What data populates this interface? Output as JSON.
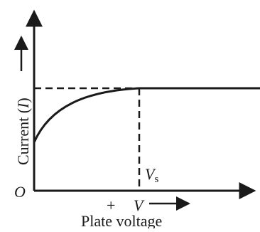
{
  "diagram": {
    "origin_label": "O",
    "y_axis_label_prefix": "Current (",
    "y_axis_label_var": "I",
    "y_axis_label_suffix": ")",
    "x_axis_label": "Plate voltage",
    "plus_sign": "+",
    "v_label": "V",
    "vs_label_main": "V",
    "vs_label_sub": "s"
  }
}
